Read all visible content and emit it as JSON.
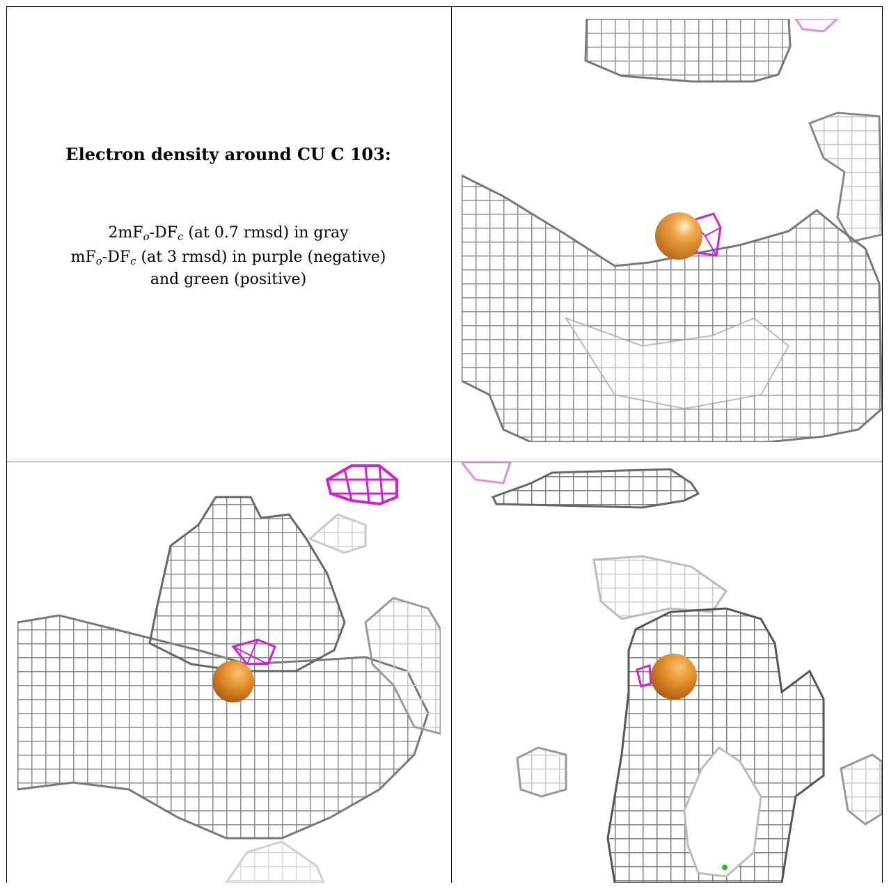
{
  "caption": {
    "title": "Electron density around CU C 103:",
    "line1": {
      "a": "2mF",
      "a_sub": "o",
      "b": "-DF",
      "b_sub": "c",
      "rest": " (at 0.7 rmsd) in gray"
    },
    "line2": {
      "a": "mF",
      "a_sub": "o",
      "b": "-DF",
      "b_sub": "c",
      "rest": " (at 3 rmsd) in purple (negative)"
    },
    "line3": "and green (positive)"
  },
  "colors": {
    "mesh_gray": "#9a9a9a",
    "mesh_dark": "#555555",
    "negative_purple": "#d21fd2",
    "positive_green": "#22c022",
    "copper_atom": "#e8952f",
    "border": "#000000"
  },
  "panels": [
    {
      "name": "view-top-right"
    },
    {
      "name": "view-bottom-left"
    },
    {
      "name": "view-bottom-right"
    }
  ]
}
